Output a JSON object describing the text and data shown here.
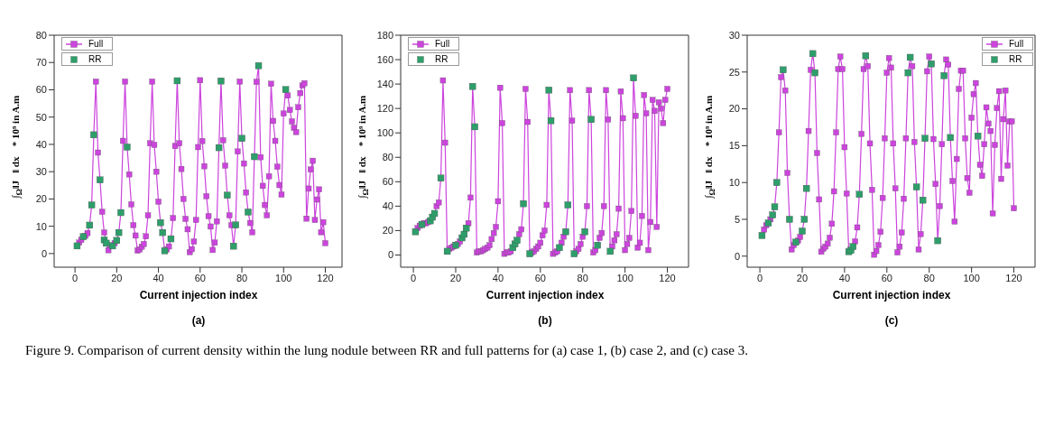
{
  "chart_data": [
    {
      "type": "line",
      "title": "(a)",
      "xlabel": "Current injection index",
      "ylabel": "∫$_{Ω}$‖J⃗‖ dx⃗ * 10⁹  in A.m",
      "legend": "top left",
      "marker": "square",
      "line_style": "solid",
      "xlim": [
        -10,
        128
      ],
      "xticks": [
        0,
        20,
        40,
        60,
        80,
        100,
        120
      ],
      "ylim": [
        -5,
        80
      ],
      "yticks": [
        0,
        10,
        20,
        30,
        40,
        50,
        60,
        70,
        80
      ],
      "x": [
        1,
        2,
        3,
        4,
        5,
        6,
        7,
        8,
        9,
        10,
        11,
        12,
        13,
        14,
        15,
        16,
        17,
        18,
        19,
        20,
        21,
        22,
        23,
        24,
        25,
        26,
        27,
        28,
        29,
        30,
        31,
        32,
        33,
        34,
        35,
        36,
        37,
        38,
        39,
        40,
        41,
        42,
        43,
        44,
        45,
        46,
        47,
        48,
        49,
        50,
        51,
        52,
        53,
        54,
        55,
        56,
        57,
        58,
        59,
        60,
        61,
        62,
        63,
        64,
        65,
        66,
        67,
        68,
        69,
        70,
        71,
        72,
        73,
        74,
        75,
        76,
        77,
        78,
        79,
        80,
        81,
        82,
        83,
        84,
        85,
        86,
        87,
        88,
        89,
        90,
        91,
        92,
        93,
        94,
        95,
        96,
        97,
        98,
        99,
        100,
        101,
        102,
        103,
        104,
        105,
        106,
        107,
        108,
        109,
        110,
        111,
        112,
        113,
        114,
        115,
        116,
        117,
        118,
        119,
        120
      ],
      "series": [
        {
          "name": "Full",
          "color": "#cc44dd",
          "values": [
            2.8,
            4,
            5,
            6.2,
            6.5,
            7.5,
            10.4,
            17.8,
            43.5,
            63,
            37,
            27,
            15.3,
            7.7,
            3.8,
            1.2,
            3,
            2.8,
            3.8,
            4.8,
            7.7,
            15,
            41.3,
            63,
            39,
            29,
            18,
            10.4,
            6.6,
            1.1,
            1.5,
            2.5,
            3.5,
            6.3,
            14,
            40.4,
            63,
            39.8,
            30,
            19,
            11.3,
            7.7,
            1,
            1.5,
            2.6,
            5.4,
            13,
            39.4,
            63.3,
            40.4,
            31,
            20,
            12.7,
            8.9,
            0.5,
            1.6,
            4.4,
            12.3,
            39,
            63.5,
            41.2,
            32,
            21,
            13.7,
            9.9,
            1.3,
            4,
            11.8,
            38.8,
            63.2,
            41.5,
            32.2,
            21.4,
            14,
            10.4,
            2.7,
            10.5,
            37.4,
            63,
            42.2,
            33,
            22.4,
            15.2,
            11.2,
            7.8,
            35.5,
            62.9,
            68.8,
            35.3,
            24.8,
            17.8,
            14,
            28.3,
            62.2,
            48.6,
            41.3,
            31.8,
            25.1,
            21.6,
            51.3,
            60.1,
            57.9,
            52.6,
            48.4,
            46.1,
            44.5,
            53.6,
            58.8,
            61.6,
            62.4,
            12.8,
            23.8,
            30.8,
            34,
            12.3,
            19.8,
            23.5,
            7.8,
            11.5,
            3.8
          ]
        },
        {
          "name": "RR",
          "type": "scatter",
          "color": "#2e9e6a",
          "x": [
            1,
            4,
            7,
            8,
            9,
            12,
            14,
            15,
            18,
            20,
            21,
            22,
            25,
            41,
            42,
            43,
            46,
            49,
            69,
            70,
            73,
            76,
            77,
            80,
            83,
            86,
            88,
            101
          ],
          "values": [
            2.8,
            6.2,
            10.4,
            17.8,
            43.5,
            27,
            5,
            3.8,
            2.8,
            4.8,
            7.7,
            15,
            39,
            11.3,
            7.7,
            1,
            5.4,
            63.3,
            38.8,
            63.2,
            21.4,
            2.7,
            10.5,
            42.2,
            15.2,
            35.5,
            68.8,
            60.1
          ]
        }
      ],
      "annotations": [
        "Figure 9. Comparison of current density within the lung nodule between RR and full patterns for (a) case 1, (b) case 2, and (c) case 3."
      ]
    },
    {
      "type": "line",
      "title": "(b)",
      "xlabel": "Current injection index",
      "ylabel": "∫$_{Ω}$‖J⃗‖ dx⃗ * 10⁹  in A.m",
      "legend": "top left",
      "marker": "square",
      "line_style": "solid",
      "xlim": [
        -6,
        130
      ],
      "xticks": [
        0,
        20,
        40,
        60,
        80,
        100,
        120
      ],
      "ylim": [
        -10,
        180
      ],
      "yticks": [
        0,
        20,
        40,
        60,
        80,
        100,
        120,
        140,
        160,
        180
      ],
      "x": [
        1,
        2,
        3,
        4,
        5,
        6,
        7,
        8,
        9,
        10,
        11,
        12,
        13,
        14,
        15,
        16,
        17,
        18,
        19,
        20,
        21,
        22,
        23,
        24,
        25,
        26,
        27,
        28,
        29,
        30,
        31,
        32,
        33,
        34,
        35,
        36,
        37,
        38,
        39,
        40,
        41,
        42,
        43,
        44,
        45,
        46,
        47,
        48,
        49,
        50,
        51,
        52,
        53,
        54,
        55,
        56,
        57,
        58,
        59,
        60,
        61,
        62,
        63,
        64,
        65,
        66,
        67,
        68,
        69,
        70,
        71,
        72,
        73,
        74,
        75,
        76,
        77,
        78,
        79,
        80,
        81,
        82,
        83,
        84,
        85,
        86,
        87,
        88,
        89,
        90,
        91,
        92,
        93,
        94,
        95,
        96,
        97,
        98,
        99,
        100,
        101,
        102,
        103,
        104,
        105,
        106,
        107,
        108,
        109,
        110,
        111,
        112,
        113,
        114,
        115,
        116,
        117,
        118,
        119,
        120
      ],
      "series": [
        {
          "name": "Full",
          "color": "#cc44dd",
          "values": [
            19,
            22,
            24,
            25,
            26,
            26,
            27,
            28,
            31,
            34,
            40,
            43,
            63,
            143,
            92,
            3,
            5,
            6,
            7,
            8,
            9,
            11,
            14,
            17,
            22,
            26,
            47,
            138,
            105,
            2,
            3,
            3,
            4,
            5,
            6,
            8,
            13,
            18,
            23,
            44,
            137,
            108,
            1,
            2,
            2,
            3,
            6,
            9,
            12,
            17,
            21,
            42,
            136,
            109,
            1,
            2,
            3,
            5,
            7,
            10,
            16,
            20,
            41,
            135,
            110,
            1,
            2,
            3,
            6,
            10,
            15,
            19,
            41,
            135,
            110,
            1,
            3,
            5,
            9,
            15,
            19,
            40,
            135,
            111,
            2,
            4,
            8,
            14,
            18,
            40,
            135,
            111,
            3,
            7,
            12,
            17,
            38,
            134,
            112,
            4,
            9,
            14,
            36,
            145,
            114,
            6,
            10,
            32,
            131,
            116,
            4,
            27,
            127,
            118,
            23,
            125,
            120,
            108,
            127,
            136
          ]
        },
        {
          "name": "RR",
          "type": "scatter",
          "color": "#2e9e6a",
          "x": [
            1,
            4,
            8,
            9,
            10,
            13,
            16,
            20,
            23,
            24,
            25,
            28,
            29,
            47,
            48,
            49,
            52,
            55,
            64,
            65,
            69,
            72,
            73,
            76,
            81,
            84,
            87,
            93,
            104
          ],
          "values": [
            19,
            25,
            28,
            31,
            34,
            63,
            3,
            8,
            14,
            17,
            22,
            138,
            105,
            6,
            9,
            12,
            42,
            1,
            135,
            110,
            6,
            19,
            41,
            1,
            19,
            111,
            8,
            3,
            145
          ]
        }
      ]
    },
    {
      "type": "line",
      "title": "(c)",
      "xlabel": "Current injection index",
      "ylabel": "∫$_{Ω}$‖J⃗‖ dx⃗ * 10⁹  in A.m",
      "legend": "top right",
      "marker": "square",
      "line_style": "solid",
      "xlim": [
        -6,
        130
      ],
      "xticks": [
        0,
        20,
        40,
        60,
        80,
        100,
        120
      ],
      "ylim": [
        -1.5,
        30
      ],
      "yticks": [
        0,
        5,
        10,
        15,
        20,
        25,
        30
      ],
      "x": [
        1,
        2,
        3,
        4,
        5,
        6,
        7,
        8,
        9,
        10,
        11,
        12,
        13,
        14,
        15,
        16,
        17,
        18,
        19,
        20,
        21,
        22,
        23,
        24,
        25,
        26,
        27,
        28,
        29,
        30,
        31,
        32,
        33,
        34,
        35,
        36,
        37,
        38,
        39,
        40,
        41,
        42,
        43,
        44,
        45,
        46,
        47,
        48,
        49,
        50,
        51,
        52,
        53,
        54,
        55,
        56,
        57,
        58,
        59,
        60,
        61,
        62,
        63,
        64,
        65,
        66,
        67,
        68,
        69,
        70,
        71,
        72,
        73,
        74,
        75,
        76,
        77,
        78,
        79,
        80,
        81,
        82,
        83,
        84,
        85,
        86,
        87,
        88,
        89,
        90,
        91,
        92,
        93,
        94,
        95,
        96,
        97,
        98,
        99,
        100,
        101,
        102,
        103,
        104,
        105,
        106,
        107,
        108,
        109,
        110,
        111,
        112,
        113,
        114,
        115,
        116,
        117,
        118,
        119,
        120
      ],
      "series": [
        {
          "name": "Full",
          "color": "#cc44dd",
          "values": [
            2.8,
            3.6,
            4.2,
            4.5,
            5.0,
            5.6,
            6.7,
            10,
            16.8,
            24.3,
            25.3,
            22.5,
            11.3,
            5,
            0.9,
            1.5,
            1.9,
            2.1,
            2.6,
            3.4,
            5,
            9.2,
            17,
            25.3,
            27.5,
            24.9,
            14,
            7.7,
            0.6,
            1.0,
            1.3,
            1.7,
            2.5,
            4.4,
            8.8,
            16.8,
            25.4,
            27.1,
            25.4,
            14.8,
            8.5,
            0.6,
            0.8,
            1.3,
            2.0,
            3.9,
            8.4,
            16.6,
            25.4,
            27.2,
            25.8,
            15.3,
            9.0,
            0.2,
            0.7,
            1.5,
            3.3,
            7.9,
            16,
            24.9,
            26.9,
            25.6,
            15.3,
            9.2,
            0.5,
            1.3,
            3.2,
            7.8,
            16,
            24.9,
            27,
            25.8,
            15.5,
            9.4,
            0.9,
            3,
            7.6,
            16,
            25.1,
            27.1,
            26.1,
            15.9,
            9.8,
            2.1,
            6.8,
            15.2,
            24.5,
            26.7,
            26.0,
            16.1,
            10.2,
            4.7,
            13.2,
            22.7,
            25.2,
            25.2,
            16,
            10.6,
            8.6,
            18.8,
            22,
            23.5,
            16.3,
            12.4,
            10.9,
            15.2,
            20.2,
            18,
            17,
            5.8,
            15.1,
            20.1,
            22.4,
            10.5,
            18.6,
            22.5,
            12.3,
            18.3,
            18.3,
            6.5
          ]
        },
        {
          "name": "RR",
          "type": "scatter",
          "color": "#2e9e6a",
          "x": [
            1,
            4,
            6,
            7,
            8,
            11,
            14,
            17,
            20,
            21,
            22,
            25,
            26,
            42,
            43,
            44,
            47,
            50,
            70,
            71,
            74,
            77,
            78,
            81,
            84,
            87,
            90,
            103
          ],
          "values": [
            2.8,
            4.5,
            5.6,
            6.7,
            10,
            25.3,
            5,
            1.9,
            3.4,
            5,
            9.2,
            27.5,
            24.9,
            0.6,
            0.8,
            1.3,
            8.4,
            27.2,
            24.9,
            27,
            9.4,
            7.6,
            16,
            26.1,
            2.1,
            24.5,
            16.1,
            16.3
          ]
        }
      ]
    }
  ]
}
